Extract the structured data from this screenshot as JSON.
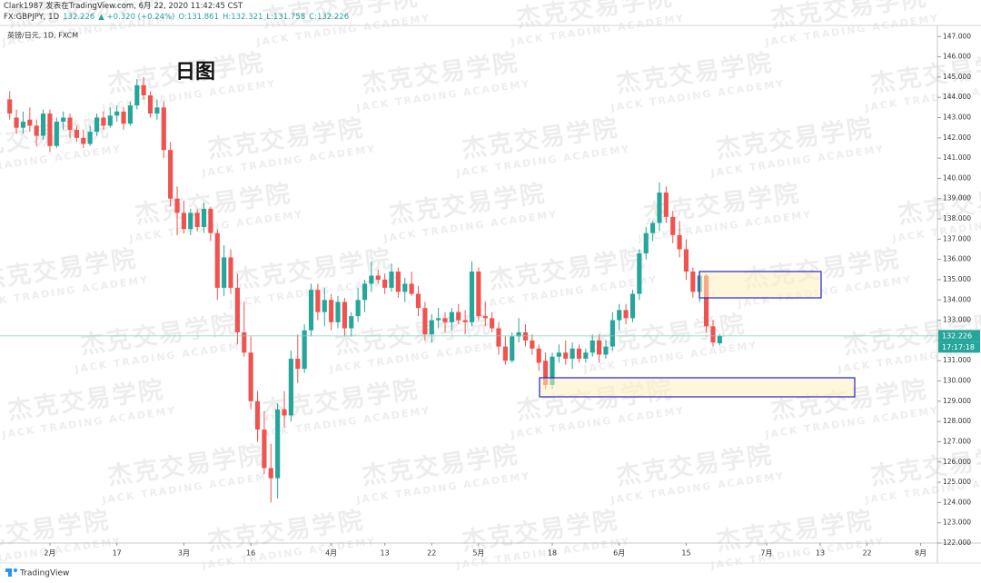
{
  "header": {
    "line1": "Clark1987 发表在TradingView.com, 6月 22, 2020 11:42:45 CST",
    "symbol": "FX:GBPJPY, 1D",
    "price": "132.226",
    "change": "▲ +0.320 (+0.24%)",
    "open": "O:131.861",
    "high": "H:132.321",
    "low": "L:131.758",
    "close": "C:132.226"
  },
  "footer": "TradingView",
  "chart_data": {
    "type": "candlestick",
    "legend": "英镑/日元, 1D, FXCM",
    "annotation": "日图",
    "watermark": {
      "title": "杰克交易学院",
      "subtitle": "JACK TRADING ACADEMY"
    },
    "up_color": "#26a69a",
    "down_color": "#ef5350",
    "grid": false,
    "last_price": 132.226,
    "countdown": "17:17:18",
    "categories": [
      null,
      null,
      null,
      null,
      null,
      null,
      "2月",
      null,
      null,
      null,
      null,
      null,
      null,
      null,
      null,
      null,
      "17",
      null,
      null,
      null,
      null,
      null,
      null,
      null,
      null,
      null,
      "3月",
      null,
      null,
      null,
      null,
      null,
      null,
      null,
      null,
      null,
      "16",
      null,
      null,
      null,
      null,
      null,
      null,
      null,
      null,
      null,
      null,
      null,
      "4月",
      null,
      null,
      null,
      null,
      null,
      null,
      null,
      "13",
      null,
      null,
      null,
      null,
      null,
      null,
      "22",
      null,
      null,
      null,
      null,
      null,
      null,
      "5月",
      null,
      null,
      null,
      null,
      null,
      null,
      null,
      null,
      null,
      null,
      "18",
      null,
      null,
      null,
      null,
      null,
      null,
      null,
      null,
      null,
      "6月",
      null,
      null,
      null,
      null,
      null,
      null,
      null,
      null,
      null,
      "15",
      null,
      null,
      null,
      null,
      null,
      null,
      null,
      null,
      null,
      null,
      null,
      "7月",
      null,
      null,
      null,
      null,
      null,
      null,
      null,
      "13",
      null,
      null,
      null,
      null,
      null,
      null,
      "22",
      null,
      null,
      null,
      null,
      null,
      null,
      null,
      "8月",
      null,
      null
    ],
    "open": [
      143.9,
      143.0,
      142.5,
      142.9,
      142.6,
      142.1,
      143.2,
      141.6,
      142.8,
      143.0,
      142.4,
      142.0,
      141.7,
      142.3,
      143.0,
      142.6,
      143.1,
      143.3,
      142.7,
      143.6,
      144.6,
      144.1,
      143.2,
      143.5,
      141.4,
      139.0,
      138.3,
      137.5,
      138.3,
      137.6,
      138.5,
      137.3,
      134.6,
      136.1,
      134.6,
      132.4,
      131.4,
      129.0,
      127.6,
      125.7,
      125.2,
      128.6,
      128.3,
      131.1,
      130.6,
      132.5,
      134.5,
      133.4,
      134.0,
      132.9,
      133.9,
      132.6,
      133.2,
      134.0,
      134.8,
      135.2,
      135.0,
      134.6,
      135.4,
      134.4,
      134.8,
      134.3,
      133.6,
      132.3,
      133.0,
      133.1,
      132.9,
      133.4,
      133.0,
      132.9,
      135.4,
      133.2,
      133.1,
      132.6,
      131.7,
      131.0,
      132.2,
      132.4,
      132.0,
      131.6,
      131.0,
      129.8,
      131.2,
      131.4,
      131.1,
      131.6,
      131.1,
      131.4,
      132.0,
      131.3,
      131.7,
      133.0,
      133.5,
      133.1,
      134.3,
      136.3,
      137.3,
      137.8,
      139.3,
      138.1,
      137.2,
      136.5,
      135.4,
      134.4,
      135.2,
      132.7,
      131.861,
      null,
      null,
      null,
      null,
      null,
      null,
      null,
      null,
      null,
      null,
      null,
      null,
      null,
      null,
      null,
      null,
      null,
      null,
      null,
      null,
      null,
      null,
      null,
      null,
      null,
      null,
      null,
      null,
      null,
      null,
      null,
      null
    ],
    "high": [
      144.3,
      143.4,
      143.3,
      143.5,
      142.9,
      143.4,
      143.4,
      143.0,
      143.3,
      143.2,
      142.6,
      142.4,
      142.6,
      143.2,
      143.3,
      143.5,
      143.6,
      143.5,
      143.8,
      144.9,
      145.0,
      144.3,
      143.9,
      143.8,
      141.8,
      139.6,
      138.9,
      138.5,
      138.5,
      138.8,
      138.6,
      137.5,
      136.7,
      136.5,
      135.3,
      133.9,
      132.2,
      129.5,
      128.5,
      126.9,
      128.9,
      129.5,
      131.5,
      132.3,
      132.8,
      134.8,
      134.8,
      134.6,
      134.3,
      134.2,
      134.1,
      133.4,
      134.6,
      135.0,
      135.9,
      135.5,
      135.3,
      135.8,
      135.6,
      135.1,
      135.4,
      134.7,
      133.9,
      133.3,
      133.6,
      133.4,
      133.6,
      133.8,
      133.5,
      135.9,
      135.6,
      133.9,
      133.4,
      132.9,
      132.2,
      132.4,
      133.1,
      132.8,
      132.3,
      131.8,
      131.4,
      131.4,
      131.8,
      132.0,
      131.9,
      131.8,
      131.6,
      132.3,
      132.3,
      132.0,
      133.4,
      133.8,
      133.8,
      134.5,
      136.5,
      137.6,
      137.9,
      139.8,
      139.6,
      138.4,
      137.9,
      137.0,
      135.6,
      135.4,
      135.3,
      133.0,
      132.321,
      null,
      null,
      null,
      null,
      null,
      null,
      null,
      null,
      null,
      null,
      null,
      null,
      null,
      null,
      null,
      null,
      null,
      null,
      null,
      null,
      null,
      null,
      null,
      null,
      null,
      null,
      null,
      null,
      null,
      null,
      null,
      null
    ],
    "low": [
      142.9,
      142.2,
      142.2,
      142.3,
      141.6,
      141.9,
      141.3,
      141.5,
      142.4,
      142.0,
      141.8,
      141.5,
      141.6,
      142.1,
      142.4,
      142.5,
      142.8,
      142.4,
      142.6,
      143.4,
      143.9,
      143.0,
      142.9,
      141.0,
      138.6,
      137.2,
      137.3,
      137.2,
      137.4,
      137.3,
      136.9,
      134.0,
      134.2,
      134.3,
      131.8,
      131.2,
      128.6,
      127.0,
      125.4,
      124.0,
      124.2,
      127.7,
      128.0,
      129.9,
      130.4,
      132.2,
      133.0,
      132.7,
      132.5,
      132.6,
      132.2,
      132.2,
      132.9,
      133.4,
      134.4,
      134.8,
      134.3,
      134.4,
      134.1,
      133.9,
      134.2,
      133.2,
      132.0,
      131.9,
      132.6,
      132.4,
      132.5,
      132.8,
      132.3,
      132.7,
      133.0,
      132.7,
      132.4,
      131.3,
      130.8,
      130.9,
      131.9,
      131.7,
      131.3,
      130.5,
      129.6,
      129.6,
      130.9,
      130.8,
      130.6,
      130.9,
      130.9,
      131.2,
      130.9,
      131.1,
      131.5,
      132.5,
      132.8,
      132.9,
      134.0,
      136.0,
      136.9,
      137.4,
      137.8,
      136.8,
      136.1,
      135.0,
      134.1,
      133.9,
      132.4,
      131.7,
      131.758,
      null,
      null,
      null,
      null,
      null,
      null,
      null,
      null,
      null,
      null,
      null,
      null,
      null,
      null,
      null,
      null,
      null,
      null,
      null,
      null,
      null,
      null,
      null,
      null,
      null,
      null,
      null,
      null,
      null,
      null,
      null,
      null
    ],
    "close": [
      143.2,
      142.5,
      142.8,
      142.6,
      142.1,
      143.2,
      141.6,
      142.8,
      143.0,
      142.4,
      142.0,
      141.7,
      142.3,
      143.0,
      142.6,
      143.1,
      143.3,
      142.7,
      143.6,
      144.6,
      144.1,
      143.2,
      143.5,
      141.4,
      139.0,
      138.3,
      137.5,
      138.3,
      137.6,
      138.5,
      137.3,
      134.6,
      136.1,
      134.6,
      132.4,
      131.4,
      129.0,
      127.6,
      125.7,
      125.2,
      128.6,
      128.3,
      131.1,
      130.6,
      132.5,
      134.5,
      133.4,
      134.0,
      132.9,
      133.9,
      132.6,
      133.2,
      134.0,
      134.8,
      135.2,
      135.0,
      134.6,
      135.4,
      134.4,
      134.8,
      134.3,
      133.6,
      132.3,
      133.0,
      133.1,
      132.9,
      133.4,
      133.0,
      132.9,
      135.4,
      133.2,
      133.1,
      132.6,
      131.7,
      131.0,
      132.2,
      132.4,
      132.0,
      131.6,
      130.9,
      129.8,
      131.2,
      131.4,
      131.1,
      131.6,
      131.1,
      131.4,
      132.0,
      131.3,
      131.7,
      133.0,
      133.5,
      133.1,
      134.3,
      136.3,
      137.3,
      137.8,
      139.3,
      138.1,
      137.2,
      136.5,
      135.4,
      134.4,
      135.2,
      132.7,
      131.9,
      132.226,
      null,
      null,
      null,
      null,
      null,
      null,
      null,
      null,
      null,
      null,
      null,
      null,
      null,
      null,
      null,
      null,
      null,
      null,
      null,
      null,
      null,
      null,
      null,
      null,
      null,
      null,
      null,
      null,
      null,
      null,
      null,
      null
    ],
    "ylim": [
      122,
      147.55
    ],
    "yticks": [
      {
        "value": 122,
        "label": "122.000"
      },
      {
        "value": 123,
        "label": "123.000"
      },
      {
        "value": 124,
        "label": "124.000"
      },
      {
        "value": 125,
        "label": "125.000"
      },
      {
        "value": 126,
        "label": "126.000"
      },
      {
        "value": 127,
        "label": "127.000"
      },
      {
        "value": 128,
        "label": "128.000"
      },
      {
        "value": 129,
        "label": "129.000"
      },
      {
        "value": 130,
        "label": "130.000"
      },
      {
        "value": 131,
        "label": "131.000"
      },
      {
        "value": 132,
        "label": "132.000"
      },
      {
        "value": 133,
        "label": "133.000"
      },
      {
        "value": 134,
        "label": "134.000"
      },
      {
        "value": 135,
        "label": "135.000"
      },
      {
        "value": 136,
        "label": "136.000"
      },
      {
        "value": 137,
        "label": "137.000"
      },
      {
        "value": 138,
        "label": "138.000"
      },
      {
        "value": 139,
        "label": "139.000"
      },
      {
        "value": 140,
        "label": "140.000"
      },
      {
        "value": 141,
        "label": "141.000"
      },
      {
        "value": 142,
        "label": "142.000"
      },
      {
        "value": 143,
        "label": "143.000"
      },
      {
        "value": 144,
        "label": "144.000"
      },
      {
        "value": 145,
        "label": "145.000"
      },
      {
        "value": 146,
        "label": "146.000"
      },
      {
        "value": 147,
        "label": "147.000"
      }
    ]
  }
}
